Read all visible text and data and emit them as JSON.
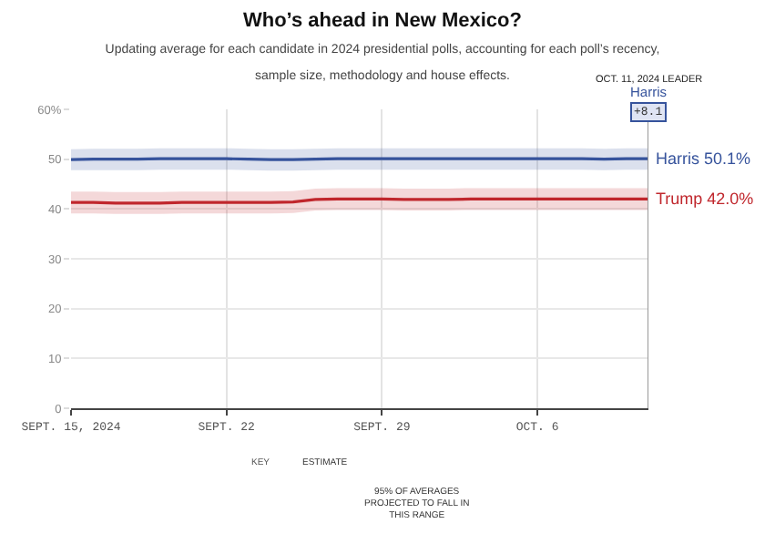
{
  "chart_data": {
    "type": "line",
    "title": "Who’s ahead in New Mexico?",
    "subtitle": "Updating average for each candidate in 2024 presidential polls, accounting for each poll’s recency,\nsample size, methodology and house effects.",
    "x": [
      "2024-09-15",
      "2024-09-16",
      "2024-09-17",
      "2024-09-18",
      "2024-09-19",
      "2024-09-20",
      "2024-09-21",
      "2024-09-22",
      "2024-09-23",
      "2024-09-24",
      "2024-09-25",
      "2024-09-26",
      "2024-09-27",
      "2024-09-28",
      "2024-09-29",
      "2024-09-30",
      "2024-10-01",
      "2024-10-02",
      "2024-10-03",
      "2024-10-04",
      "2024-10-05",
      "2024-10-06",
      "2024-10-07",
      "2024-10-08",
      "2024-10-09",
      "2024-10-10",
      "2024-10-11"
    ],
    "series": [
      {
        "name": "Harris",
        "color": "#36539c",
        "values": [
          49.9,
          50.0,
          50.0,
          50.0,
          50.1,
          50.1,
          50.1,
          50.1,
          50.0,
          49.9,
          49.9,
          50.0,
          50.1,
          50.1,
          50.1,
          50.1,
          50.1,
          50.1,
          50.1,
          50.1,
          50.1,
          50.1,
          50.1,
          50.1,
          50.0,
          50.1,
          50.1
        ],
        "lower": [
          47.8,
          47.8,
          47.8,
          47.8,
          47.9,
          47.9,
          47.9,
          47.9,
          47.8,
          47.7,
          47.7,
          47.8,
          47.9,
          47.9,
          47.9,
          47.9,
          47.9,
          47.9,
          47.9,
          47.9,
          47.9,
          47.9,
          47.9,
          47.9,
          47.8,
          47.9,
          47.9
        ],
        "upper": [
          52.0,
          52.1,
          52.1,
          52.1,
          52.2,
          52.2,
          52.2,
          52.2,
          52.1,
          52.0,
          52.0,
          52.1,
          52.2,
          52.2,
          52.2,
          52.2,
          52.2,
          52.2,
          52.2,
          52.2,
          52.2,
          52.2,
          52.2,
          52.2,
          52.1,
          52.2,
          52.2
        ],
        "value_labels": [
          null,
          null,
          null,
          null,
          null,
          null,
          null,
          null,
          null,
          null,
          null,
          null,
          null,
          null,
          null,
          null,
          null,
          null,
          null,
          null,
          null,
          null,
          null,
          null,
          null,
          null,
          "50.1%"
        ]
      },
      {
        "name": "Trump",
        "color": "#c0272d",
        "values": [
          41.3,
          41.3,
          41.2,
          41.2,
          41.2,
          41.3,
          41.3,
          41.3,
          41.3,
          41.3,
          41.4,
          41.9,
          42.0,
          42.0,
          42.0,
          41.9,
          41.9,
          41.9,
          42.0,
          42.0,
          42.0,
          42.0,
          42.0,
          42.0,
          42.0,
          42.0,
          42.0
        ],
        "lower": [
          39.1,
          39.1,
          39.0,
          39.0,
          39.0,
          39.1,
          39.1,
          39.1,
          39.1,
          39.1,
          39.2,
          39.7,
          39.8,
          39.8,
          39.8,
          39.7,
          39.7,
          39.7,
          39.8,
          39.8,
          39.8,
          39.8,
          39.8,
          39.8,
          39.8,
          39.8,
          39.8
        ],
        "upper": [
          43.5,
          43.5,
          43.4,
          43.4,
          43.4,
          43.5,
          43.5,
          43.5,
          43.5,
          43.5,
          43.6,
          44.1,
          44.2,
          44.2,
          44.2,
          44.1,
          44.1,
          44.1,
          44.2,
          44.2,
          44.2,
          44.2,
          44.2,
          44.2,
          44.2,
          44.2,
          44.2
        ],
        "value_labels": [
          null,
          null,
          null,
          null,
          null,
          null,
          null,
          null,
          null,
          null,
          null,
          null,
          null,
          null,
          null,
          null,
          null,
          null,
          null,
          null,
          null,
          null,
          null,
          null,
          null,
          null,
          "42.0%"
        ]
      }
    ],
    "xlim": [
      "2024-09-15",
      "2024-10-11"
    ],
    "xticks": [
      {
        "value": "2024-09-15",
        "label": "SEPT. 15, 2024"
      },
      {
        "value": "2024-09-22",
        "label": "SEPT. 22"
      },
      {
        "value": "2024-09-29",
        "label": "SEPT. 29"
      },
      {
        "value": "2024-10-06",
        "label": "OCT. 6"
      }
    ],
    "ylim": [
      0,
      60
    ],
    "yticks": [
      0,
      10,
      20,
      30,
      40,
      50,
      {
        "value": 60,
        "label": "60%"
      }
    ],
    "grid": true,
    "legend": false,
    "marker": "none",
    "line_style": "solid",
    "ref_lines": [
      {
        "axis": "x",
        "value": "2024-10-11",
        "color": "#999999"
      }
    ],
    "annotations": [
      "OCT. 11, 2024 LEADER",
      "Harris",
      "+8.1",
      "KEY",
      "ESTIMATE",
      "95% OF AVERAGES\nPROJECTED TO FALL IN\nTHIS RANGE"
    ]
  }
}
